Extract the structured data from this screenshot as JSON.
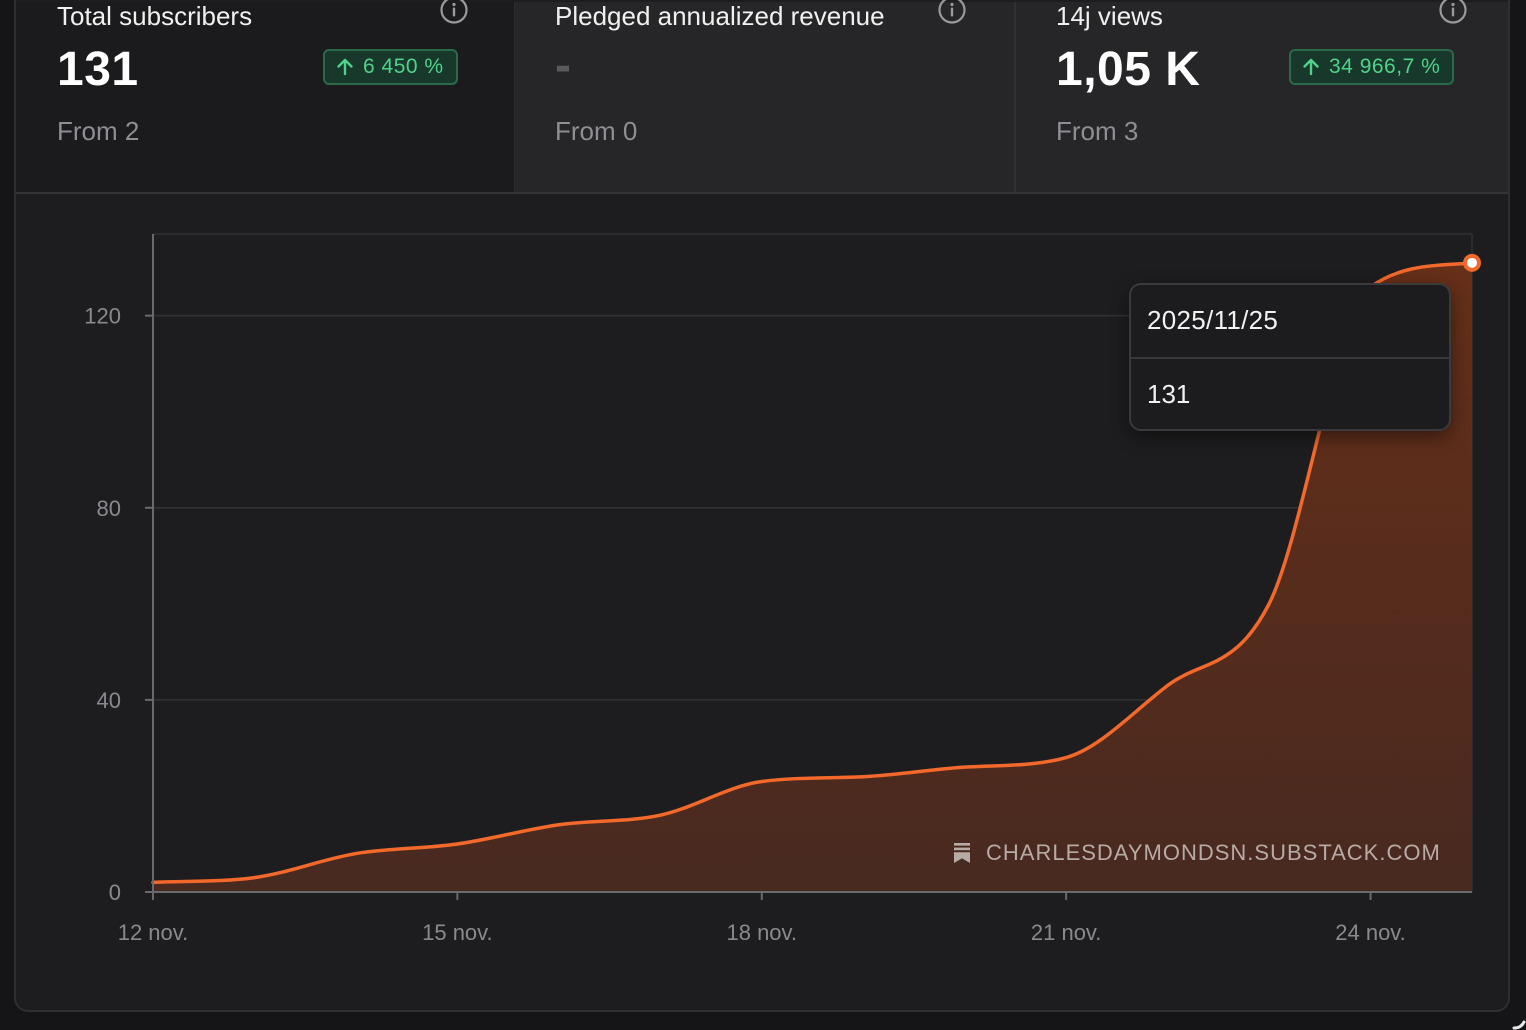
{
  "stats": [
    {
      "title": "Total subscribers",
      "value": "131",
      "change": "6 450 %",
      "from": "From 2",
      "info_icon": "info-circle-icon",
      "change_icon": "arrow-up-icon"
    },
    {
      "title": "Pledged annualized revenue",
      "value": "-",
      "change": "",
      "from": "From 0",
      "info_icon": "info-circle-icon"
    },
    {
      "title": "14j views",
      "value": "1,05 K",
      "change": "34 966,7 %",
      "from": "From 3",
      "info_icon": "info-circle-icon",
      "change_icon": "arrow-up-icon"
    }
  ],
  "colors": {
    "line": "#f2692b",
    "badge_text": "#4fd38a",
    "badge_bg": "#17382a"
  },
  "tooltip": {
    "date": "2025/11/25",
    "value": "131"
  },
  "watermark": {
    "icon": "substack-bookmark-icon",
    "text": "CHARLESDAYMONDSN.SUBSTACK.COM"
  },
  "chart_data": {
    "type": "area",
    "x": [
      "2025-11-12",
      "2025-11-13",
      "2025-11-14",
      "2025-11-15",
      "2025-11-16",
      "2025-11-17",
      "2025-11-18",
      "2025-11-19",
      "2025-11-20",
      "2025-11-21",
      "2025-11-22",
      "2025-11-23",
      "2025-11-24",
      "2025-11-25"
    ],
    "x_ticks": [
      "12 nov.",
      "15 nov.",
      "18 nov.",
      "21 nov.",
      "24 nov."
    ],
    "x_tick_dates": [
      "2025-11-12",
      "2025-11-15",
      "2025-11-18",
      "2025-11-21",
      "2025-11-24"
    ],
    "y_ticks": [
      "0",
      "40",
      "80",
      "120"
    ],
    "y_tick_values": [
      0,
      40,
      80,
      120
    ],
    "series": [
      {
        "values": [
          2,
          3,
          8,
          10,
          14,
          16,
          23,
          24,
          26,
          28,
          43,
          60,
          126,
          131
        ]
      }
    ],
    "ylim": [
      0,
      137
    ],
    "grid": true,
    "highlight": {
      "date": "2025-11-25",
      "value": 131
    }
  }
}
